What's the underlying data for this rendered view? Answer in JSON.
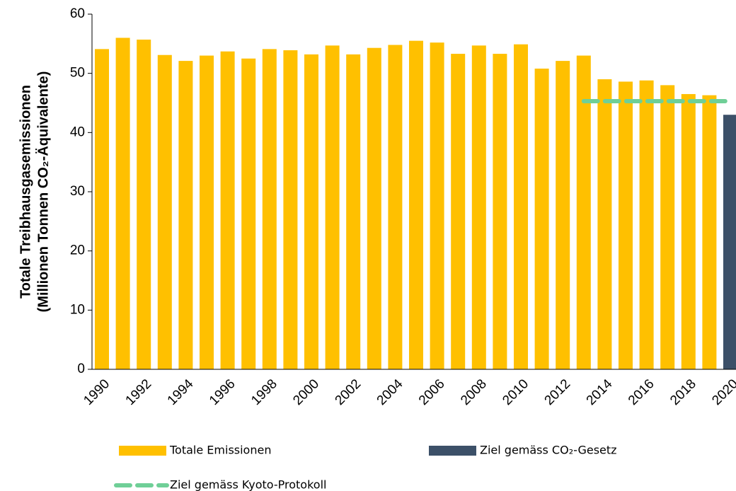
{
  "chart_data": {
    "type": "bar",
    "y_label": [
      "Totale Treibhausgasemissionen",
      "(Millionen Tonnen CO₂-Äquivalente)"
    ],
    "categories": [
      "1990",
      null,
      "1992",
      null,
      "1994",
      null,
      "1996",
      null,
      "1998",
      null,
      "2000",
      null,
      "2002",
      null,
      "2004",
      null,
      "2006",
      null,
      "2008",
      null,
      "2010",
      null,
      "2012",
      null,
      "2014",
      null,
      "2016",
      null,
      "2018",
      null,
      "2020"
    ],
    "series": [
      {
        "name": "Totale Emissionen",
        "type": "bar",
        "color": "#ffc000",
        "values": [
          54.1,
          56.0,
          55.7,
          53.1,
          52.1,
          53.0,
          53.7,
          52.5,
          54.1,
          53.9,
          53.2,
          54.7,
          53.2,
          54.3,
          54.8,
          55.5,
          55.2,
          53.3,
          54.7,
          53.3,
          54.9,
          50.8,
          52.1,
          53.0,
          49.0,
          48.6,
          48.8,
          48.0,
          46.5,
          46.3,
          null
        ]
      },
      {
        "name": "Ziel gemäss CO₂-Gesetz",
        "type": "bar",
        "color": "#3c5068",
        "values": [
          null,
          null,
          null,
          null,
          null,
          null,
          null,
          null,
          null,
          null,
          null,
          null,
          null,
          null,
          null,
          null,
          null,
          null,
          null,
          null,
          null,
          null,
          null,
          null,
          null,
          null,
          null,
          null,
          null,
          null,
          43.0
        ]
      },
      {
        "name": "Ziel gemäss Kyoto-Protokoll",
        "type": "line",
        "color": "#6fcf97",
        "dashed": true,
        "values": [
          null,
          null,
          null,
          null,
          null,
          null,
          null,
          null,
          null,
          null,
          null,
          null,
          null,
          null,
          null,
          null,
          null,
          null,
          null,
          null,
          null,
          null,
          null,
          45.3,
          45.3,
          45.3,
          45.3,
          45.3,
          45.3,
          45.3,
          45.3
        ]
      }
    ],
    "ylim": [
      0,
      60
    ],
    "yticks": [
      0,
      10,
      20,
      30,
      40,
      50,
      60
    ]
  }
}
